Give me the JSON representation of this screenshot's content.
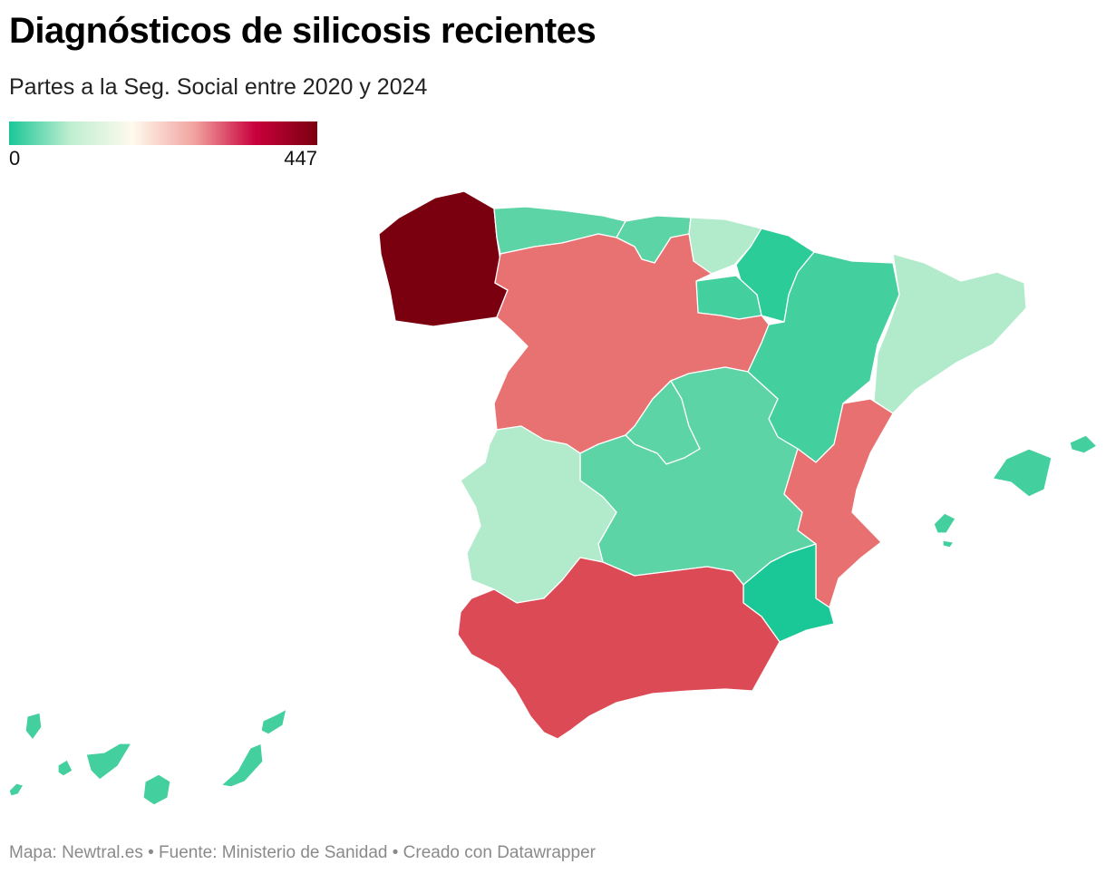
{
  "title": "Diagnósticos de silicosis recientes",
  "subtitle": "Partes a la Seg. Social entre 2020 y 2024",
  "legend": {
    "min_label": "0",
    "max_label": "447",
    "gradient_stops": [
      "#1ac797",
      "#bfeed0",
      "#fffaee",
      "#f1a4a0",
      "#c9003c",
      "#7a0010"
    ]
  },
  "regions": [
    {
      "name": "Galicia",
      "color": "#7a0010"
    },
    {
      "name": "Asturias",
      "color": "#5dd4a5"
    },
    {
      "name": "Cantabria",
      "color": "#5dd4a5"
    },
    {
      "name": "País Vasco",
      "color": "#b2ebcb"
    },
    {
      "name": "Navarra",
      "color": "#2ccc99"
    },
    {
      "name": "La Rioja",
      "color": "#44cf9f"
    },
    {
      "name": "Aragón",
      "color": "#44cf9f"
    },
    {
      "name": "Cataluña",
      "color": "#b2ebcb"
    },
    {
      "name": "Castilla y León",
      "color": "#e87272"
    },
    {
      "name": "Madrid",
      "color": "#5dd4a5"
    },
    {
      "name": "Castilla-La Mancha",
      "color": "#5dd4a5"
    },
    {
      "name": "Extremadura",
      "color": "#b2ebcb"
    },
    {
      "name": "Comunitat Valenciana",
      "color": "#e87070"
    },
    {
      "name": "Región de Murcia",
      "color": "#1ac797"
    },
    {
      "name": "Andalucía",
      "color": "#dc4a55"
    },
    {
      "name": "Illes Balears",
      "color": "#44cf9f"
    },
    {
      "name": "Canarias",
      "color": "#44cf9f"
    }
  ],
  "footer": "Mapa: Newtral.es • Fuente: Ministerio de Sanidad • Creado con Datawrapper"
}
